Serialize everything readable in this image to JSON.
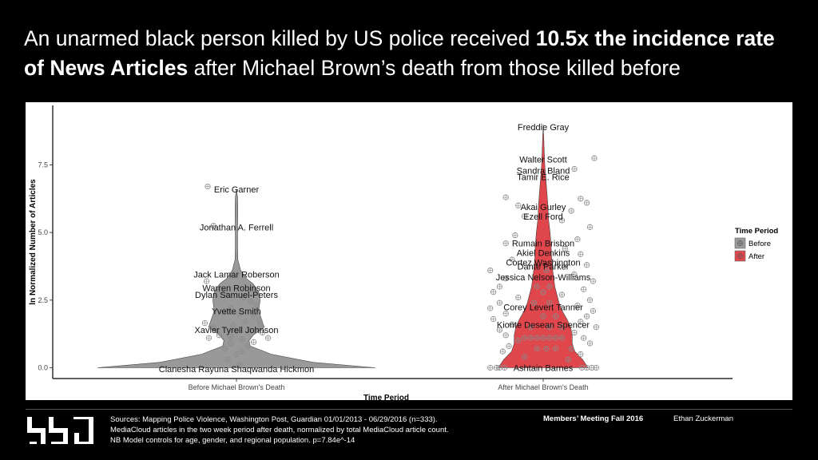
{
  "headline": {
    "part1": "An unarmed black person killed by US police received ",
    "bold1": "10.5x the incidence rate of News Articles",
    "part2": " after Michael Brown’s death from those killed before"
  },
  "footer": {
    "sources_line1": "Sources: Mapping Police Violence, Washington Post, Guardian 01/01/2013 - 06/29/2016 (n=333).",
    "sources_line2": "MediaCloud articles in the two week period after death, normalized by total MediaCloud article count.",
    "sources_line3": "NB Model controls for age, gender, and regional population. p=7.84e^-14",
    "meeting": "Members’ Meeting Fall 2016",
    "author": "Ethan Zuckerman"
  },
  "colors": {
    "before": "#999999",
    "after": "#E0474C",
    "points": "#8a8a8a"
  },
  "chart_data": {
    "type": "violin",
    "xlabel": "Time Period",
    "ylabel": "ln Normalized Number of Articles",
    "ylim": [
      -0.4,
      9.7
    ],
    "yticks": [
      0.0,
      2.5,
      5.0,
      7.5
    ],
    "ytick_labels": [
      "0.0",
      "2.5",
      "5.0",
      "7.5"
    ],
    "categories": [
      "Before Michael Brown's Death",
      "After Michael Brown's Death"
    ],
    "legend": {
      "title": "Time Period",
      "entries": [
        "Before",
        "After"
      ],
      "position": "right"
    },
    "series": [
      {
        "name": "Before",
        "color": "#999999",
        "violin": [
          [
            0,
            1.0
          ],
          [
            0.2,
            0.55
          ],
          [
            0.5,
            0.25
          ],
          [
            0.8,
            0.1
          ],
          [
            1.0,
            0.09
          ],
          [
            1.2,
            0.12
          ],
          [
            1.5,
            0.2
          ],
          [
            1.8,
            0.18
          ],
          [
            2.1,
            0.16
          ],
          [
            2.5,
            0.17
          ],
          [
            2.8,
            0.16
          ],
          [
            3.1,
            0.12
          ],
          [
            3.3,
            0.07
          ],
          [
            3.6,
            0.03
          ],
          [
            4.0,
            0.01
          ],
          [
            4.5,
            0.008
          ],
          [
            5.2,
            0.008
          ],
          [
            5.8,
            0.01
          ],
          [
            6.3,
            0.008
          ],
          [
            6.6,
            0.0
          ]
        ],
        "points": [
          [
            6.7,
            -0.5
          ],
          [
            5.25,
            -0.4
          ],
          [
            3.2,
            -0.52
          ],
          [
            2.9,
            -0.3
          ],
          [
            2.75,
            -0.2
          ],
          [
            2.6,
            0.12
          ],
          [
            2.45,
            0.25
          ],
          [
            2.3,
            0.35
          ],
          [
            2.1,
            -0.2
          ],
          [
            2.0,
            0.05
          ],
          [
            1.9,
            0.3
          ],
          [
            1.75,
            0.4
          ],
          [
            1.65,
            -0.55
          ],
          [
            1.6,
            0.42
          ],
          [
            1.5,
            -0.4
          ],
          [
            1.4,
            0.2
          ],
          [
            1.3,
            0.45
          ],
          [
            1.2,
            -0.3
          ],
          [
            1.1,
            -0.48
          ],
          [
            1.1,
            0.55
          ],
          [
            1.05,
            0.1
          ],
          [
            0.95,
            0.3
          ],
          [
            0.9,
            -0.1
          ],
          [
            0.8,
            0.2
          ],
          [
            0.7,
            -0.2
          ],
          [
            0.6,
            0.1
          ],
          [
            0.5,
            0.0
          ],
          [
            0.3,
            -0.15
          ],
          [
            0.1,
            0.05
          ],
          [
            1.55,
            -0.05
          ],
          [
            1.35,
            0.0
          ],
          [
            2.2,
            -0.1
          ],
          [
            1.7,
            0.15
          ],
          [
            1.15,
            -0.1
          ]
        ],
        "labels": [
          {
            "text": "Eric Garner",
            "y": 6.6
          },
          {
            "text": "Jonathan A. Ferrell",
            "y": 5.2
          },
          {
            "text": "Jack Lamar Roberson",
            "y": 3.45
          },
          {
            "text": "Warren Robinson",
            "y": 2.95
          },
          {
            "text": "Dylan Samuel-Peters",
            "y": 2.7
          },
          {
            "text": "Yvette Smith",
            "y": 2.1
          },
          {
            "text": "Xavier Tyrell Johnson",
            "y": 1.4
          },
          {
            "text": "Clanesha Rayuna Shaqwanda Hickmon",
            "y": -0.05
          }
        ]
      },
      {
        "name": "After",
        "color": "#E0474C",
        "violin": [
          [
            0,
            0.85
          ],
          [
            0.3,
            0.75
          ],
          [
            0.6,
            0.6
          ],
          [
            0.9,
            0.55
          ],
          [
            1.2,
            0.55
          ],
          [
            1.5,
            0.52
          ],
          [
            1.8,
            0.45
          ],
          [
            2.1,
            0.36
          ],
          [
            2.4,
            0.3
          ],
          [
            2.7,
            0.26
          ],
          [
            3.0,
            0.22
          ],
          [
            3.3,
            0.2
          ],
          [
            3.6,
            0.18
          ],
          [
            4.0,
            0.16
          ],
          [
            4.5,
            0.15
          ],
          [
            5.0,
            0.13
          ],
          [
            5.5,
            0.1
          ],
          [
            6.0,
            0.09
          ],
          [
            6.5,
            0.07
          ],
          [
            7.0,
            0.05
          ],
          [
            7.5,
            0.03
          ],
          [
            8.0,
            0.02
          ],
          [
            8.5,
            0.01
          ],
          [
            9.0,
            0.0
          ]
        ],
        "points": [
          [
            7.75,
            0.82
          ],
          [
            7.35,
            0.5
          ],
          [
            6.3,
            -0.6
          ],
          [
            6.25,
            0.6
          ],
          [
            6.1,
            0.7
          ],
          [
            6.0,
            -0.4
          ],
          [
            5.8,
            0.45
          ],
          [
            5.6,
            -0.3
          ],
          [
            5.45,
            0.3
          ],
          [
            5.2,
            0.75
          ],
          [
            4.9,
            -0.45
          ],
          [
            4.75,
            0.55
          ],
          [
            4.6,
            -0.6
          ],
          [
            4.4,
            0.35
          ],
          [
            4.2,
            0.6
          ],
          [
            4.0,
            -0.5
          ],
          [
            3.8,
            0.7
          ],
          [
            3.6,
            -0.85
          ],
          [
            3.45,
            0.5
          ],
          [
            3.3,
            -0.6
          ],
          [
            3.2,
            0.8
          ],
          [
            3.0,
            -0.7
          ],
          [
            2.9,
            0.65
          ],
          [
            2.8,
            -0.8
          ],
          [
            2.7,
            0.3
          ],
          [
            2.6,
            -0.4
          ],
          [
            2.5,
            0.75
          ],
          [
            2.4,
            -0.7
          ],
          [
            2.3,
            0.55
          ],
          [
            2.2,
            -0.85
          ],
          [
            2.1,
            0.8
          ],
          [
            2.0,
            -0.6
          ],
          [
            1.9,
            0.7
          ],
          [
            1.8,
            -0.8
          ],
          [
            1.7,
            0.6
          ],
          [
            1.6,
            -0.5
          ],
          [
            1.5,
            0.85
          ],
          [
            1.4,
            -0.7
          ],
          [
            1.3,
            0.5
          ],
          [
            1.2,
            -0.6
          ],
          [
            1.1,
            0.65
          ],
          [
            1.0,
            -0.4
          ],
          [
            0.9,
            0.75
          ],
          [
            0.8,
            -0.55
          ],
          [
            0.7,
            0.45
          ],
          [
            0.6,
            -0.65
          ],
          [
            0.5,
            0.6
          ],
          [
            0.4,
            -0.3
          ],
          [
            0.3,
            0.4
          ],
          [
            0.0,
            -0.85
          ],
          [
            0.0,
            -0.75
          ],
          [
            0.0,
            -0.7
          ],
          [
            0.0,
            -0.62
          ],
          [
            0.0,
            0.62
          ],
          [
            0.0,
            0.7
          ],
          [
            0.0,
            0.78
          ],
          [
            0.0,
            0.85
          ],
          [
            1.1,
            -0.2
          ],
          [
            1.1,
            -0.1
          ],
          [
            1.1,
            0.0
          ],
          [
            1.1,
            0.1
          ],
          [
            1.1,
            0.2
          ],
          [
            1.1,
            0.3
          ],
          [
            1.1,
            -0.3
          ],
          [
            0.7,
            -0.1
          ],
          [
            0.7,
            0.05
          ],
          [
            0.7,
            0.2
          ],
          [
            1.5,
            -0.2
          ],
          [
            1.5,
            0.1
          ],
          [
            1.5,
            0.3
          ],
          [
            2.4,
            0.1
          ],
          [
            2.4,
            -0.15
          ],
          [
            3.0,
            0.1
          ],
          [
            3.0,
            -0.1
          ],
          [
            3.6,
            0.05
          ],
          [
            1.9,
            0.0
          ],
          [
            1.9,
            0.2
          ],
          [
            2.8,
            0.0
          ]
        ],
        "labels": [
          {
            "text": "Freddie Gray",
            "y": 8.9
          },
          {
            "text": "Walter Scott",
            "y": 7.7
          },
          {
            "text": "Sandra Bland",
            "y": 7.3
          },
          {
            "text": "Tamir E. Rice",
            "y": 7.05
          },
          {
            "text": "Akai Gurley",
            "y": 5.95
          },
          {
            "text": "Ezell Ford",
            "y": 5.6
          },
          {
            "text": "Rumain Brisbon",
            "y": 4.6
          },
          {
            "text": "Akiel Denkins",
            "y": 4.25
          },
          {
            "text": "Cortez Washington",
            "y": 3.9
          },
          {
            "text": "Dante Parker",
            "y": 3.75
          },
          {
            "text": "Jessica Nelson-Williams",
            "y": 3.35
          },
          {
            "text": "Corey Levert Tanner",
            "y": 2.25
          },
          {
            "text": "Kionte Desean Spencer",
            "y": 1.6
          },
          {
            "text": "Ashtain Barnes",
            "y": 0.0
          }
        ]
      }
    ]
  }
}
